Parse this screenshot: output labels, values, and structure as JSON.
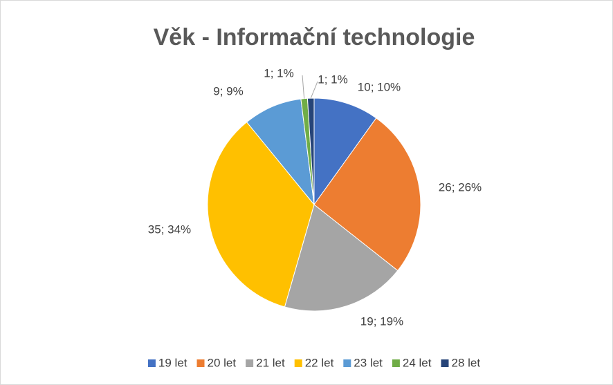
{
  "chart_data": {
    "type": "pie",
    "title": "Věk - Informační technologie",
    "categories": [
      "19 let",
      "20 let",
      "21 let",
      "22 let",
      "23 let",
      "24 let",
      "28 let"
    ],
    "values": [
      10,
      26,
      19,
      35,
      9,
      1,
      1
    ],
    "value_labels": [
      "10; 10%",
      "26; 26%",
      "19; 19%",
      "35; 34%",
      "9; 9%",
      "1; 1%",
      "1; 1%"
    ],
    "colors": [
      "#4472c4",
      "#ed7d31",
      "#a5a5a5",
      "#ffc000",
      "#5b9bd5",
      "#70ad47",
      "#264478"
    ],
    "legend": "bottom"
  }
}
